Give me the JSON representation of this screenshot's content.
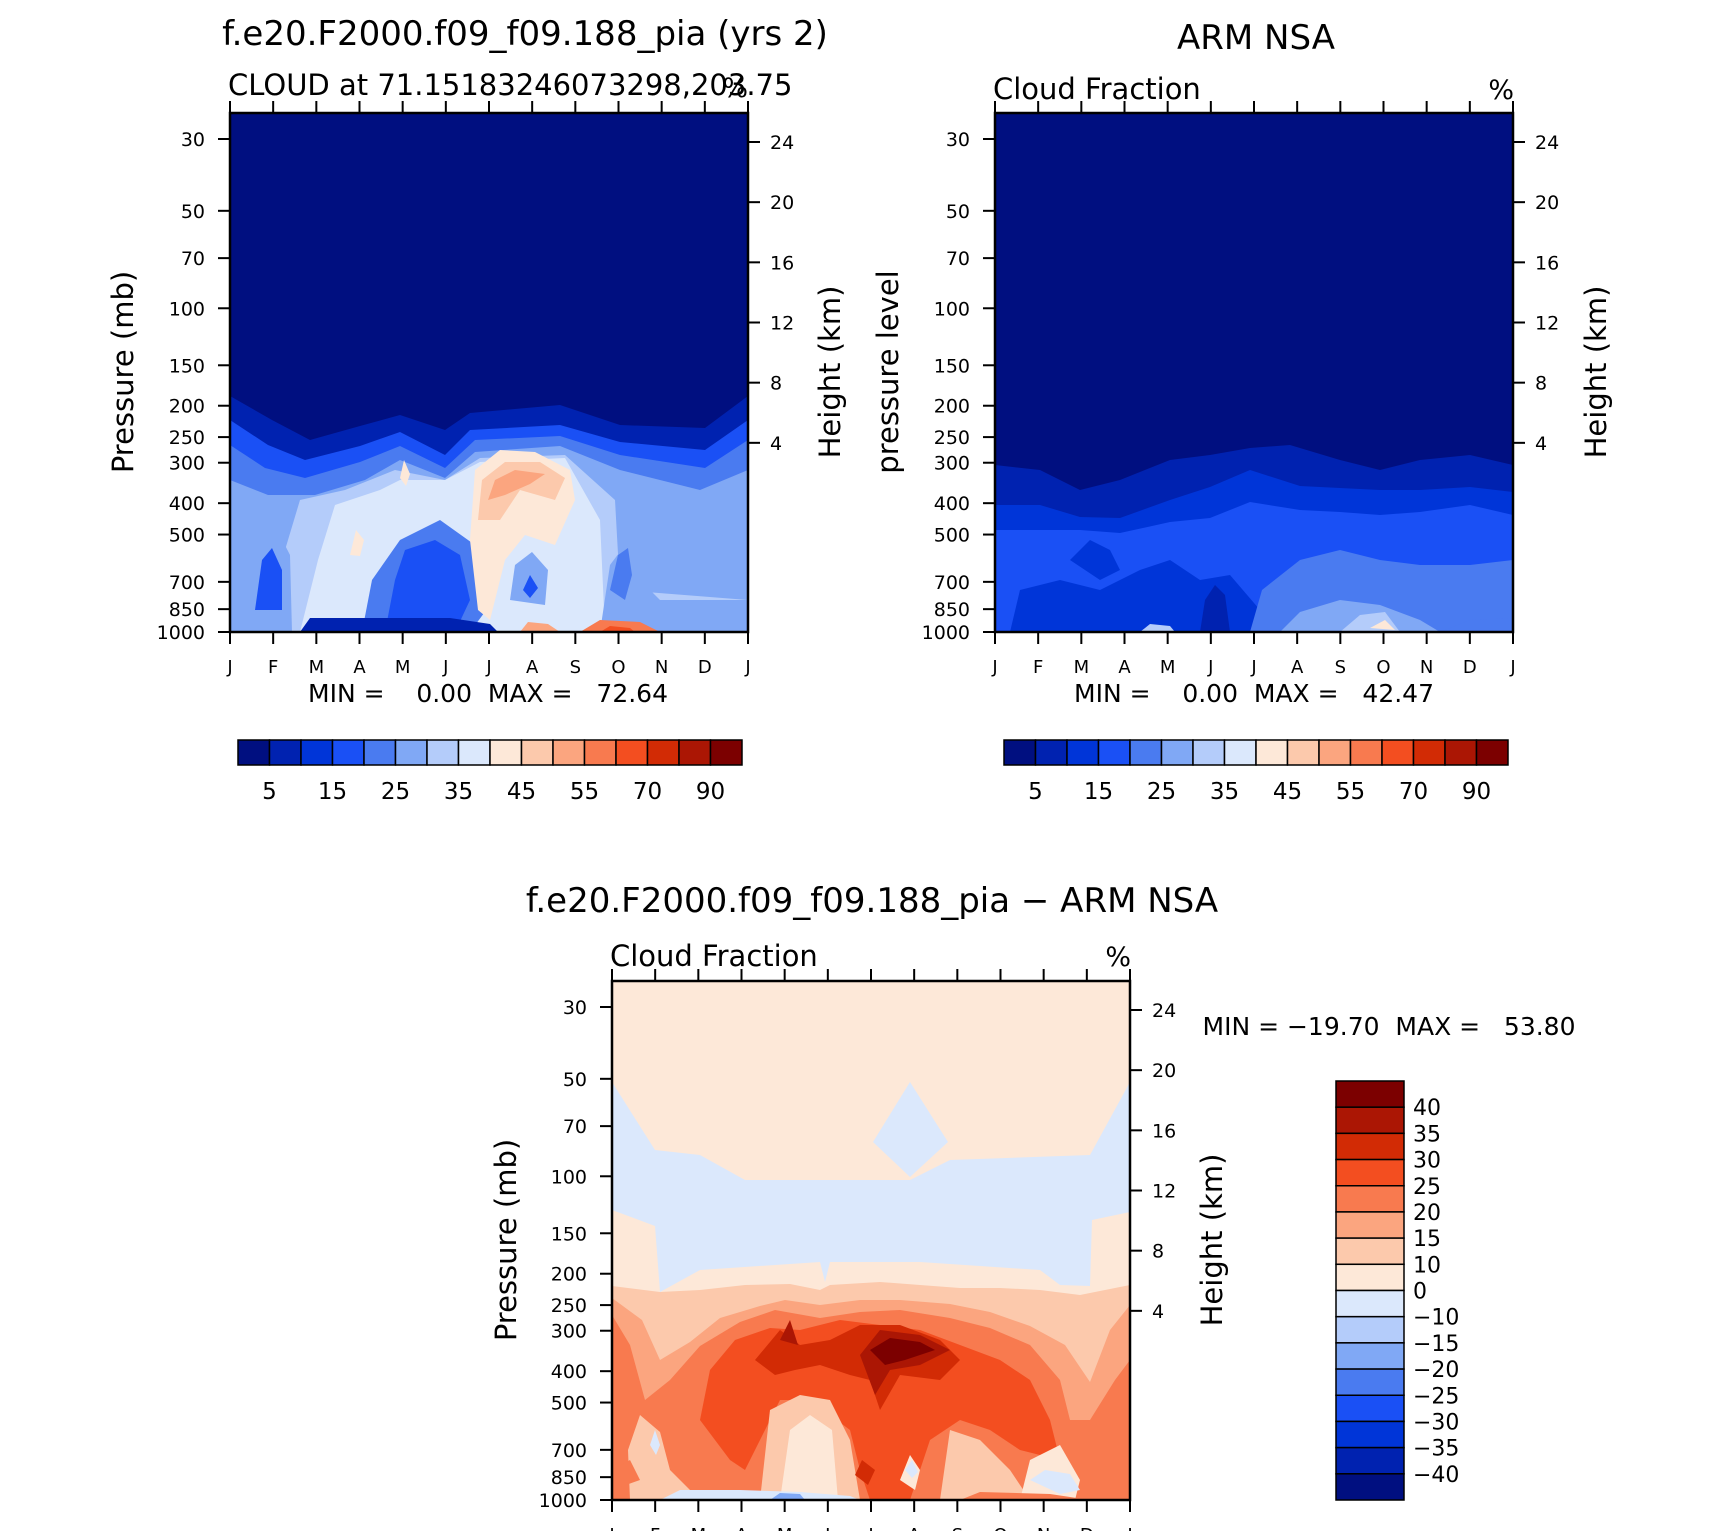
{
  "months": [
    "J",
    "F",
    "M",
    "A",
    "M",
    "J",
    "J",
    "A",
    "S",
    "O",
    "N",
    "D",
    "J"
  ],
  "pressure_ticks": [
    30,
    50,
    70,
    100,
    150,
    200,
    250,
    300,
    400,
    500,
    700,
    850,
    1000
  ],
  "height_ticks": [
    4,
    8,
    12,
    16,
    20,
    24
  ],
  "height_unit_label": "Height (km)",
  "unit_label": "%",
  "chart_data": [
    {
      "type": "heatmap",
      "title": "f.e20.F2000.f09_f09.188_pia (yrs 2)",
      "subtitle": "CLOUD at 71.15183246073298,203.75",
      "ylabel": "Pressure (mb)",
      "y2label": "Height (km)",
      "stats_text": "MIN =    0.00  MAX =   72.64",
      "min": 0.0,
      "max": 72.64,
      "levels": [
        5,
        10,
        15,
        20,
        25,
        30,
        35,
        40,
        45,
        50,
        55,
        60,
        70,
        80,
        90
      ],
      "colorbar_labels": [
        "5",
        "15",
        "25",
        "35",
        "45",
        "55",
        "70",
        "90"
      ],
      "colors": [
        "#000f80",
        "#0022b0",
        "#0035d8",
        "#1a50f5",
        "#4a7bf0",
        "#80a8f5",
        "#b4ccfa",
        "#dbe8fc",
        "#fde8d8",
        "#fcc9ac",
        "#fba57f",
        "#f87a4f",
        "#f34e20",
        "#d22b05",
        "#ab1604",
        "#7c0000"
      ]
    },
    {
      "type": "heatmap",
      "title": "ARM NSA",
      "subtitle": "Cloud Fraction",
      "ylabel": "pressure level",
      "y2label": "Height (km)",
      "stats_text": "MIN =    0.00  MAX =   42.47",
      "min": 0.0,
      "max": 42.47,
      "levels": [
        5,
        10,
        15,
        20,
        25,
        30,
        35,
        40,
        45,
        50,
        55,
        60,
        70,
        80,
        90
      ],
      "colorbar_labels": [
        "5",
        "15",
        "25",
        "35",
        "45",
        "55",
        "70",
        "90"
      ],
      "colors": [
        "#000f80",
        "#0022b0",
        "#0035d8",
        "#1a50f5",
        "#4a7bf0",
        "#80a8f5",
        "#b4ccfa",
        "#dbe8fc",
        "#fde8d8",
        "#fcc9ac",
        "#fba57f",
        "#f87a4f",
        "#f34e20",
        "#d22b05",
        "#ab1604",
        "#7c0000"
      ]
    },
    {
      "type": "heatmap",
      "title": "f.e20.F2000.f09_f09.188_pia - ARM NSA",
      "subtitle": "Cloud Fraction",
      "ylabel": "Pressure (mb)",
      "y2label": "Height (km)",
      "stats_text": "MIN = -19.70  MAX =   53.80",
      "min": -19.7,
      "max": 53.8,
      "levels": [
        -40,
        -35,
        -30,
        -25,
        -20,
        -15,
        -10,
        0,
        10,
        15,
        20,
        25,
        30,
        35,
        40
      ],
      "colorbar_labels": [
        "40",
        "35",
        "30",
        "25",
        "20",
        "15",
        "10",
        "0",
        "-10",
        "-15",
        "-20",
        "-25",
        "-30",
        "-35",
        "-40"
      ],
      "colors": [
        "#000f80",
        "#0022b0",
        "#0035d8",
        "#1a50f5",
        "#4a7bf0",
        "#80a8f5",
        "#b4ccfa",
        "#dbe8fc",
        "#fde8d8",
        "#fcc9ac",
        "#fba57f",
        "#f87a4f",
        "#f34e20",
        "#d22b05",
        "#ab1604",
        "#7c0000"
      ]
    }
  ]
}
